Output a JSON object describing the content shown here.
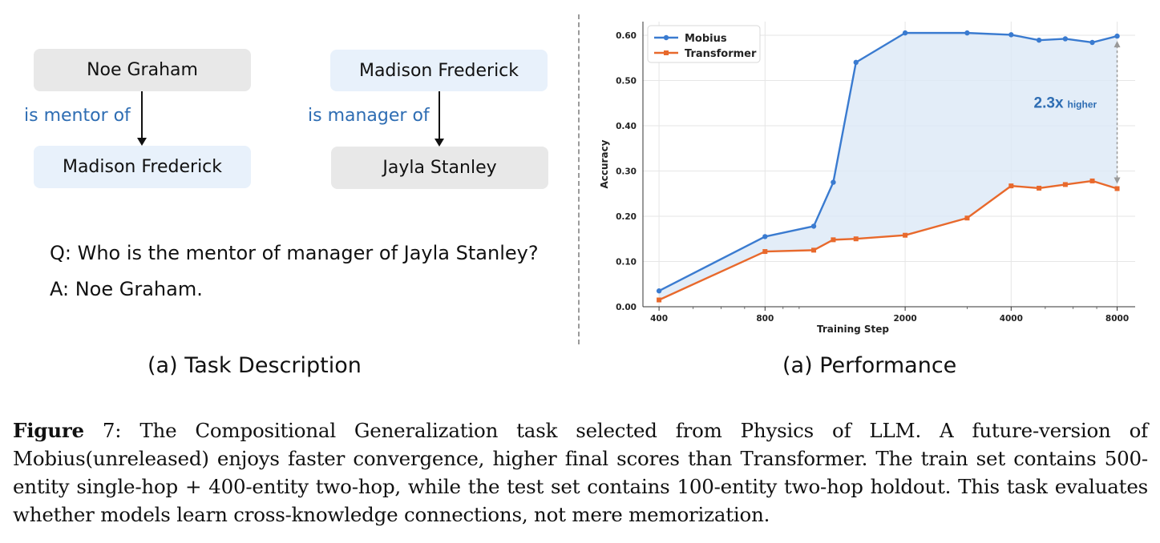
{
  "task": {
    "left_graph": {
      "top_entity": "Noe Graham",
      "relation": "is mentor of",
      "bottom_entity": "Madison Frederick"
    },
    "right_graph": {
      "top_entity": "Madison Frederick",
      "relation": "is manager of",
      "bottom_entity": "Jayla Stanley"
    },
    "question": "Q: Who is the mentor of manager of Jayla Stanley?",
    "answer": "A: Noe Graham.",
    "subcaption": "(a) Task Description"
  },
  "performance": {
    "subcaption": "(a) Performance"
  },
  "chart_data": {
    "type": "line",
    "xlabel": "Training Step",
    "ylabel": "Accuracy",
    "x_scale": "log",
    "xticks": [
      400,
      800,
      2000,
      4000,
      8000
    ],
    "xtick_labels": [
      "400",
      "800",
      "2000",
      "4000",
      "8000"
    ],
    "ylim": [
      0.0,
      0.63
    ],
    "yticks": [
      "0.00",
      "0.10",
      "0.20",
      "0.30",
      "0.40",
      "0.50",
      "0.60"
    ],
    "grid": true,
    "legend_position": "top-left",
    "series": [
      {
        "name": "Mobius",
        "color": "#3a7bd0",
        "marker": "circle",
        "x": [
          400,
          800,
          1100,
          1250,
          1450,
          2000,
          3000,
          4000,
          4800,
          5700,
          6800,
          8000
        ],
        "values": [
          0.035,
          0.155,
          0.178,
          0.275,
          0.54,
          0.605,
          0.605,
          0.601,
          0.589,
          0.592,
          0.584,
          0.598
        ]
      },
      {
        "name": "Transformer",
        "color": "#e8692c",
        "marker": "square",
        "x": [
          400,
          800,
          1100,
          1250,
          1450,
          2000,
          3000,
          4000,
          4800,
          5700,
          6800,
          8000
        ],
        "values": [
          0.015,
          0.122,
          0.125,
          0.148,
          0.15,
          0.158,
          0.196,
          0.267,
          0.262,
          0.27,
          0.278,
          0.261
        ]
      }
    ],
    "annotation": {
      "value_text": "2.3x",
      "suffix_text": "higher",
      "color": "#2e6db3"
    }
  },
  "caption": {
    "label": "Figure",
    "number": " 7: ",
    "text": "The Compositional Generalization task selected from Physics of LLM. A future-version of Mobius(unreleased) enjoys faster convergence, higher final scores than Transformer. The train set contains 500-entity single-hop + 400-entity two-hop, while the test set contains 100-entity two-hop holdout. This task evaluates whether models learn cross-knowledge connections, not mere memorization."
  }
}
